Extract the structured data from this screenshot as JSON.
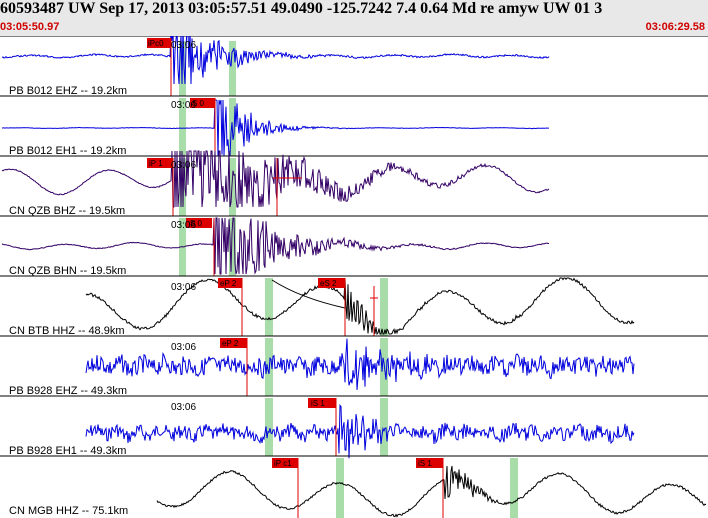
{
  "header": {
    "title": "60593487 UW Sep 17, 2013 03:05:57.51   49.0490 -125.7242  7.4 0.64 Md re amyw UW 01   3",
    "time_start": "03:05:50.97",
    "time_end": "03:06:29.58"
  },
  "colors": {
    "blue_trace": "#0000dd",
    "black_trace": "#000000",
    "purple_trace": "#330066",
    "pick_red": "#dd0000",
    "window_green": "#a8dca8"
  },
  "traces": [
    {
      "label": "PB B012 EHZ -- 19.2km",
      "time_mark": "03:06",
      "picks": [
        "iPc0"
      ],
      "color": "blue"
    },
    {
      "label": "PB B012 EH1 -- 19.2km",
      "time_mark": "03:06",
      "picks": [
        "S 0"
      ],
      "color": "blue"
    },
    {
      "label": "CN QZB BHZ -- 19.5km",
      "time_mark": "03:06",
      "picks": [
        "iP 1"
      ],
      "color": "purple"
    },
    {
      "label": "CN QZB BHN -- 19.5km",
      "time_mark": "03:06",
      "picks": [
        "S 0"
      ],
      "color": "purple"
    },
    {
      "label": "CN BTB HHZ -- 48.9km",
      "time_mark": "03:06",
      "picks": [
        "eP 2",
        "eS 2"
      ],
      "color": "black"
    },
    {
      "label": "PB B928 EHZ -- 49.3km",
      "time_mark": "03:06",
      "picks": [
        "eP 2"
      ],
      "color": "blue"
    },
    {
      "label": "PB B928 EH1 -- 49.3km",
      "time_mark": "03:06",
      "picks": [
        "iS 1"
      ],
      "color": "blue"
    },
    {
      "label": "CN MGB HHZ -- 75.1km",
      "time_mark": "",
      "picks": [
        "iP c1",
        "iS 1"
      ],
      "color": "black"
    }
  ]
}
